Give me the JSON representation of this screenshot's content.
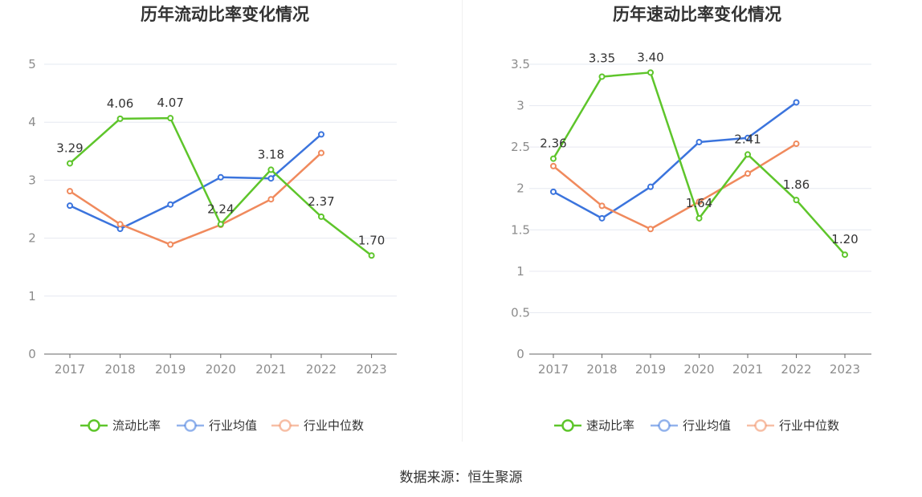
{
  "colors": {
    "company": "#5ec52b",
    "industry_avg": "#3b74dd",
    "industry_median": "#f08a5d",
    "grid": "#e6e8f0",
    "axis": "#666666",
    "text": "#333333",
    "tick": "#8c8c8c"
  },
  "chart_data": [
    {
      "type": "line",
      "title": "历年流动比率变化情况",
      "categories": [
        "2017",
        "2018",
        "2019",
        "2020",
        "2021",
        "2022",
        "2023"
      ],
      "ylim": [
        0,
        5
      ],
      "yticks": [
        "0",
        "1",
        "2",
        "3",
        "4",
        "5"
      ],
      "grid": true,
      "legend_position": "bottom",
      "series": [
        {
          "name": "流动比率",
          "values": [
            3.29,
            4.06,
            4.07,
            2.24,
            3.18,
            2.37,
            1.7
          ],
          "labels": [
            "3.29",
            "4.06",
            "4.07",
            "2.24",
            "3.18",
            "2.37",
            "1.70"
          ]
        },
        {
          "name": "行业均值",
          "values": [
            2.56,
            2.16,
            2.58,
            3.05,
            3.03,
            3.79,
            null
          ]
        },
        {
          "name": "行业中位数",
          "values": [
            2.81,
            2.24,
            1.89,
            2.23,
            2.67,
            3.47,
            null
          ]
        }
      ]
    },
    {
      "type": "line",
      "title": "历年速动比率变化情况",
      "categories": [
        "2017",
        "2018",
        "2019",
        "2020",
        "2021",
        "2022",
        "2023"
      ],
      "ylim": [
        0,
        3.5
      ],
      "yticks": [
        "0",
        "0.5",
        "1",
        "1.5",
        "2",
        "2.5",
        "3",
        "3.5"
      ],
      "grid": true,
      "legend_position": "bottom",
      "series": [
        {
          "name": "速动比率",
          "values": [
            2.36,
            3.35,
            3.4,
            1.64,
            2.41,
            1.86,
            1.2
          ],
          "labels": [
            "2.36",
            "3.35",
            "3.40",
            "1.64",
            "2.41",
            "1.86",
            "1.20"
          ]
        },
        {
          "name": "行业均值",
          "values": [
            1.96,
            1.64,
            2.02,
            2.56,
            2.61,
            3.04,
            null
          ]
        },
        {
          "name": "行业中位数",
          "values": [
            2.27,
            1.79,
            1.51,
            1.84,
            2.18,
            2.54,
            null
          ]
        }
      ]
    }
  ],
  "footer": {
    "source_text": "数据来源：恒生聚源"
  }
}
